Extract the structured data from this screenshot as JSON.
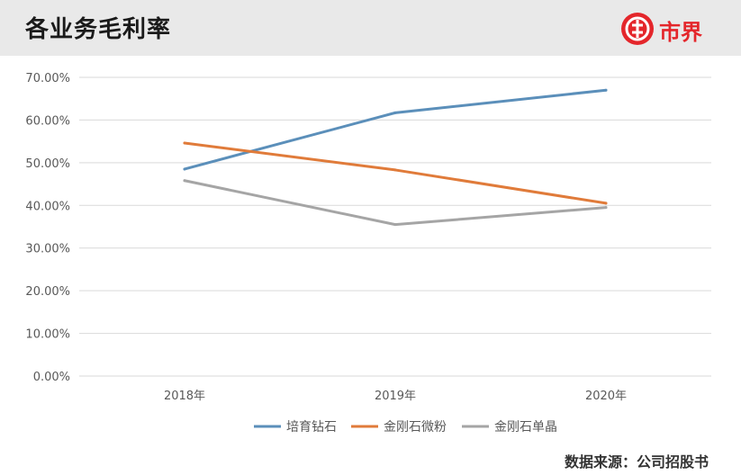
{
  "header": {
    "title": "各业务毛利率",
    "logo_text": "市界"
  },
  "footer": {
    "source": "数据来源：公司招股书"
  },
  "colors": {
    "header_bg": "#e9e9e9",
    "brand_red": "#e4262b",
    "grid": "#d9d9d9",
    "axis_text": "#595959"
  },
  "chart_data": {
    "type": "line",
    "title": "",
    "xlabel": "",
    "ylabel": "",
    "categories": [
      "2018年",
      "2019年",
      "2020年"
    ],
    "ylim": [
      0,
      0.7
    ],
    "yticks": [
      0,
      0.1,
      0.2,
      0.3,
      0.4,
      0.5,
      0.6,
      0.7
    ],
    "ytick_labels": [
      "0.00%",
      "10.00%",
      "20.00%",
      "30.00%",
      "40.00%",
      "50.00%",
      "60.00%",
      "70.00%"
    ],
    "grid": true,
    "legend_position": "bottom",
    "series": [
      {
        "name": "培育钻石",
        "color": "#5b8fba",
        "values": [
          0.485,
          0.617,
          0.67
        ]
      },
      {
        "name": "金刚石微粉",
        "color": "#e07b3a",
        "values": [
          0.546,
          0.483,
          0.405
        ]
      },
      {
        "name": "金刚石单晶",
        "color": "#a5a5a5",
        "values": [
          0.458,
          0.355,
          0.395
        ]
      }
    ]
  }
}
